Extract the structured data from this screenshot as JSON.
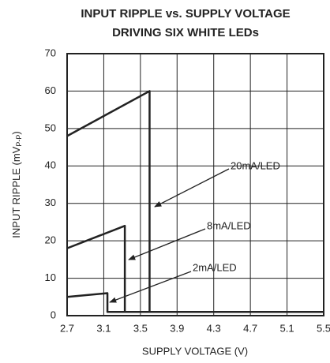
{
  "chart_data": {
    "type": "line",
    "title": [
      "INPUT RIPPLE vs. SUPPLY VOLTAGE",
      "DRIVING SIX WHITE LEDs"
    ],
    "xlabel": "SUPPLY VOLTAGE (V)",
    "ylabel": [
      "INPUT RIPPLE (mV",
      "P-P",
      ")"
    ],
    "xlim": [
      2.7,
      5.5
    ],
    "xticks": [
      2.7,
      3.1,
      3.5,
      3.9,
      4.3,
      4.7,
      5.1,
      5.5
    ],
    "ylim": [
      0,
      70
    ],
    "yticks": [
      0,
      10,
      20,
      30,
      40,
      50,
      60,
      70
    ],
    "grid": true,
    "series": [
      {
        "name": "20mA/LED",
        "color": "#222222",
        "x": [
          2.7,
          3.6,
          3.6,
          5.5
        ],
        "values": [
          48,
          60,
          1,
          1
        ]
      },
      {
        "name": "8mA/LED",
        "color": "#222222",
        "x": [
          2.7,
          3.33,
          3.33,
          5.5
        ],
        "values": [
          18,
          24,
          1,
          1
        ]
      },
      {
        "name": "2mA/LED",
        "color": "#222222",
        "x": [
          2.7,
          3.14,
          3.14,
          5.5
        ],
        "values": [
          5,
          6,
          1,
          1
        ]
      }
    ]
  }
}
